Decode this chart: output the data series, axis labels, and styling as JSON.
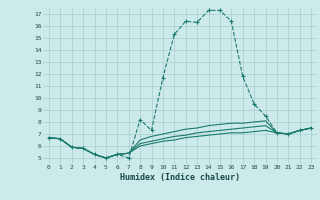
{
  "title": "",
  "xlabel": "Humidex (Indice chaleur)",
  "bg_color": "#cceaea",
  "grid_color": "#aacccc",
  "line_color": "#1a7a6e",
  "xlim": [
    -0.5,
    23.5
  ],
  "ylim": [
    4.5,
    17.5
  ],
  "xticks": [
    0,
    1,
    2,
    3,
    4,
    5,
    6,
    7,
    8,
    9,
    10,
    11,
    12,
    13,
    14,
    15,
    16,
    17,
    18,
    19,
    20,
    21,
    22,
    23
  ],
  "yticks": [
    5,
    6,
    7,
    8,
    9,
    10,
    11,
    12,
    13,
    14,
    15,
    16,
    17
  ],
  "line1_x": [
    0,
    1,
    2,
    3,
    4,
    5,
    6,
    7,
    8,
    9,
    10,
    11,
    12,
    13,
    14,
    15,
    16,
    17,
    18,
    19,
    20,
    21,
    22,
    23
  ],
  "line1_y": [
    6.7,
    6.6,
    5.9,
    5.8,
    5.3,
    5.0,
    5.3,
    5.0,
    8.2,
    7.3,
    11.7,
    15.3,
    16.4,
    16.3,
    17.3,
    17.3,
    16.4,
    11.8,
    9.5,
    8.5,
    7.1,
    7.0,
    7.3,
    7.5
  ],
  "line2_x": [
    0,
    1,
    2,
    3,
    4,
    5,
    6,
    7,
    8,
    9,
    10,
    11,
    12,
    13,
    14,
    15,
    16,
    17,
    18,
    19,
    20,
    21,
    22,
    23
  ],
  "line2_y": [
    6.7,
    6.6,
    5.9,
    5.8,
    5.3,
    5.0,
    5.3,
    5.4,
    6.5,
    6.8,
    7.0,
    7.2,
    7.4,
    7.5,
    7.7,
    7.8,
    7.9,
    7.9,
    8.0,
    8.1,
    7.1,
    7.0,
    7.3,
    7.5
  ],
  "line3_x": [
    0,
    1,
    2,
    3,
    4,
    5,
    6,
    7,
    8,
    9,
    10,
    11,
    12,
    13,
    14,
    15,
    16,
    17,
    18,
    19,
    20,
    21,
    22,
    23
  ],
  "line3_y": [
    6.7,
    6.6,
    5.9,
    5.8,
    5.3,
    5.0,
    5.3,
    5.4,
    6.2,
    6.4,
    6.6,
    6.8,
    6.9,
    7.1,
    7.2,
    7.3,
    7.4,
    7.5,
    7.6,
    7.7,
    7.1,
    7.0,
    7.3,
    7.5
  ],
  "line4_x": [
    0,
    1,
    2,
    3,
    4,
    5,
    6,
    7,
    8,
    9,
    10,
    11,
    12,
    13,
    14,
    15,
    16,
    17,
    18,
    19,
    20,
    21,
    22,
    23
  ],
  "line4_y": [
    6.7,
    6.6,
    5.9,
    5.8,
    5.3,
    5.0,
    5.3,
    5.4,
    6.0,
    6.2,
    6.4,
    6.5,
    6.7,
    6.8,
    6.9,
    7.0,
    7.1,
    7.1,
    7.2,
    7.3,
    7.1,
    7.0,
    7.3,
    7.5
  ]
}
